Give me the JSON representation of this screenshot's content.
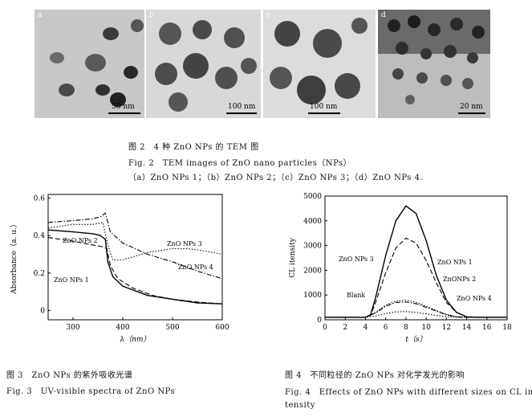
{
  "tem": {
    "panels": [
      {
        "label": "a",
        "scale": "50 nm"
      },
      {
        "label": "b",
        "scale": "100 nm"
      },
      {
        "label": "c",
        "scale": "100 nm"
      },
      {
        "label": "d",
        "scale": "20 nm"
      }
    ],
    "caption_cn": "图 2　4 种 ZnO NPs 的 TEM 图",
    "caption_en": "Fig. 2　TEM images of ZnO nano particles（NPs）",
    "caption_sub": "（a）ZnO NPs 1；（b）ZnO NPs 2；（c）ZnO NPs 3；（d）ZnO NPs 4."
  },
  "fig3": {
    "caption_cn": "图 3　ZnO NPs 的紫外吸收光谱",
    "caption_en": "Fig. 3　UV-visible spectra of ZnO NPs"
  },
  "fig4": {
    "caption_cn": "图 4　不同粒径的 ZnO NPs 对化学发光的影响",
    "caption_en_1": "Fig. 4　Effects of ZnO NPs with different sizes on CL in-",
    "caption_en_2": "tensity"
  },
  "chart_data": [
    {
      "type": "line",
      "xlabel": "λ（nm）",
      "ylabel": "Absorbance（a. u.）",
      "xlim": [
        250,
        600
      ],
      "ylim": [
        -0.05,
        0.62
      ],
      "xticks": [
        "300",
        "400",
        "500",
        "600"
      ],
      "yticks": [
        "0",
        "0.2",
        "0.4",
        "0.6"
      ],
      "series": [
        {
          "name": "ZnO NPs 1",
          "style": "solid",
          "x": [
            250,
            300,
            340,
            355,
            365,
            370,
            380,
            400,
            450,
            500,
            550,
            600
          ],
          "y": [
            0.43,
            0.42,
            0.41,
            0.4,
            0.38,
            0.26,
            0.18,
            0.13,
            0.08,
            0.06,
            0.04,
            0.035
          ]
        },
        {
          "name": "ZnO NPs 2",
          "style": "dashed",
          "x": [
            250,
            300,
            340,
            360,
            368,
            375,
            390,
            420,
            460,
            500,
            550,
            600
          ],
          "y": [
            0.39,
            0.37,
            0.35,
            0.34,
            0.33,
            0.24,
            0.17,
            0.12,
            0.08,
            0.06,
            0.045,
            0.035
          ]
        },
        {
          "name": "ZnO NPs 3",
          "style": "dotted",
          "x": [
            250,
            300,
            340,
            360,
            370,
            380,
            400,
            450,
            500,
            530,
            560,
            600
          ],
          "y": [
            0.44,
            0.46,
            0.46,
            0.47,
            0.35,
            0.27,
            0.27,
            0.31,
            0.33,
            0.33,
            0.32,
            0.3
          ]
        },
        {
          "name": "ZnO NPs 4",
          "style": "dashdot",
          "x": [
            250,
            300,
            340,
            355,
            365,
            375,
            400,
            450,
            500,
            550,
            600
          ],
          "y": [
            0.47,
            0.48,
            0.49,
            0.5,
            0.52,
            0.42,
            0.36,
            0.3,
            0.26,
            0.21,
            0.17
          ]
        }
      ],
      "annotations": [
        "ZnO NPs 2",
        "ZnO NPs 3",
        "ZnO NPs 4",
        "ZnO NPs 1"
      ]
    },
    {
      "type": "line",
      "xlabel": "t（s）",
      "ylabel": "CL itensity",
      "xlim": [
        0,
        18
      ],
      "ylim": [
        0,
        5000
      ],
      "xticks": [
        "0",
        "2",
        "4",
        "6",
        "8",
        "10",
        "12",
        "14",
        "16",
        "18"
      ],
      "yticks": [
        "0",
        "1000",
        "2000",
        "3000",
        "4000",
        "5000"
      ],
      "series": [
        {
          "name": "ZnO NPs 1",
          "style": "solid",
          "x": [
            0,
            4,
            4.5,
            5,
            6,
            7,
            8,
            9,
            10,
            11,
            12,
            13,
            14,
            15,
            16,
            18
          ],
          "y": [
            100,
            100,
            200,
            900,
            2600,
            4000,
            4600,
            4300,
            3200,
            1800,
            800,
            300,
            120,
            100,
            100,
            100
          ]
        },
        {
          "name": "ZnO NPs 2",
          "style": "dashed",
          "x": [
            0,
            4,
            4.5,
            5,
            6,
            7,
            8,
            9,
            10,
            11,
            12,
            13,
            14,
            15,
            18
          ],
          "y": [
            100,
            100,
            180,
            700,
            1900,
            2900,
            3300,
            3100,
            2400,
            1500,
            700,
            300,
            120,
            100,
            100
          ]
        },
        {
          "name": "ZnO NPs 3",
          "style": "dotted",
          "x": [
            0,
            4,
            5,
            6,
            7,
            8,
            9,
            10,
            11,
            12,
            13,
            14,
            15,
            18
          ],
          "y": [
            100,
            100,
            300,
            600,
            750,
            800,
            700,
            550,
            380,
            220,
            130,
            100,
            100,
            100
          ]
        },
        {
          "name": "ZnO NPs 4",
          "style": "dashdot",
          "x": [
            0,
            4,
            5,
            6,
            7,
            8,
            9,
            10,
            11,
            12,
            13,
            14,
            15,
            18
          ],
          "y": [
            100,
            100,
            280,
            550,
            700,
            720,
            650,
            500,
            350,
            200,
            120,
            100,
            100,
            100
          ]
        },
        {
          "name": "Blank",
          "style": "dotted",
          "x": [
            0,
            4,
            5,
            6,
            7,
            8,
            9,
            10,
            11,
            12,
            13,
            14,
            18
          ],
          "y": [
            100,
            100,
            150,
            250,
            320,
            330,
            300,
            240,
            180,
            130,
            100,
            100,
            100
          ]
        }
      ],
      "annotations": [
        "ZnO NPs 3",
        "ZnO NPs 1",
        "ZnONPs 2",
        "Blank",
        "ZnO NPs 4"
      ]
    }
  ]
}
